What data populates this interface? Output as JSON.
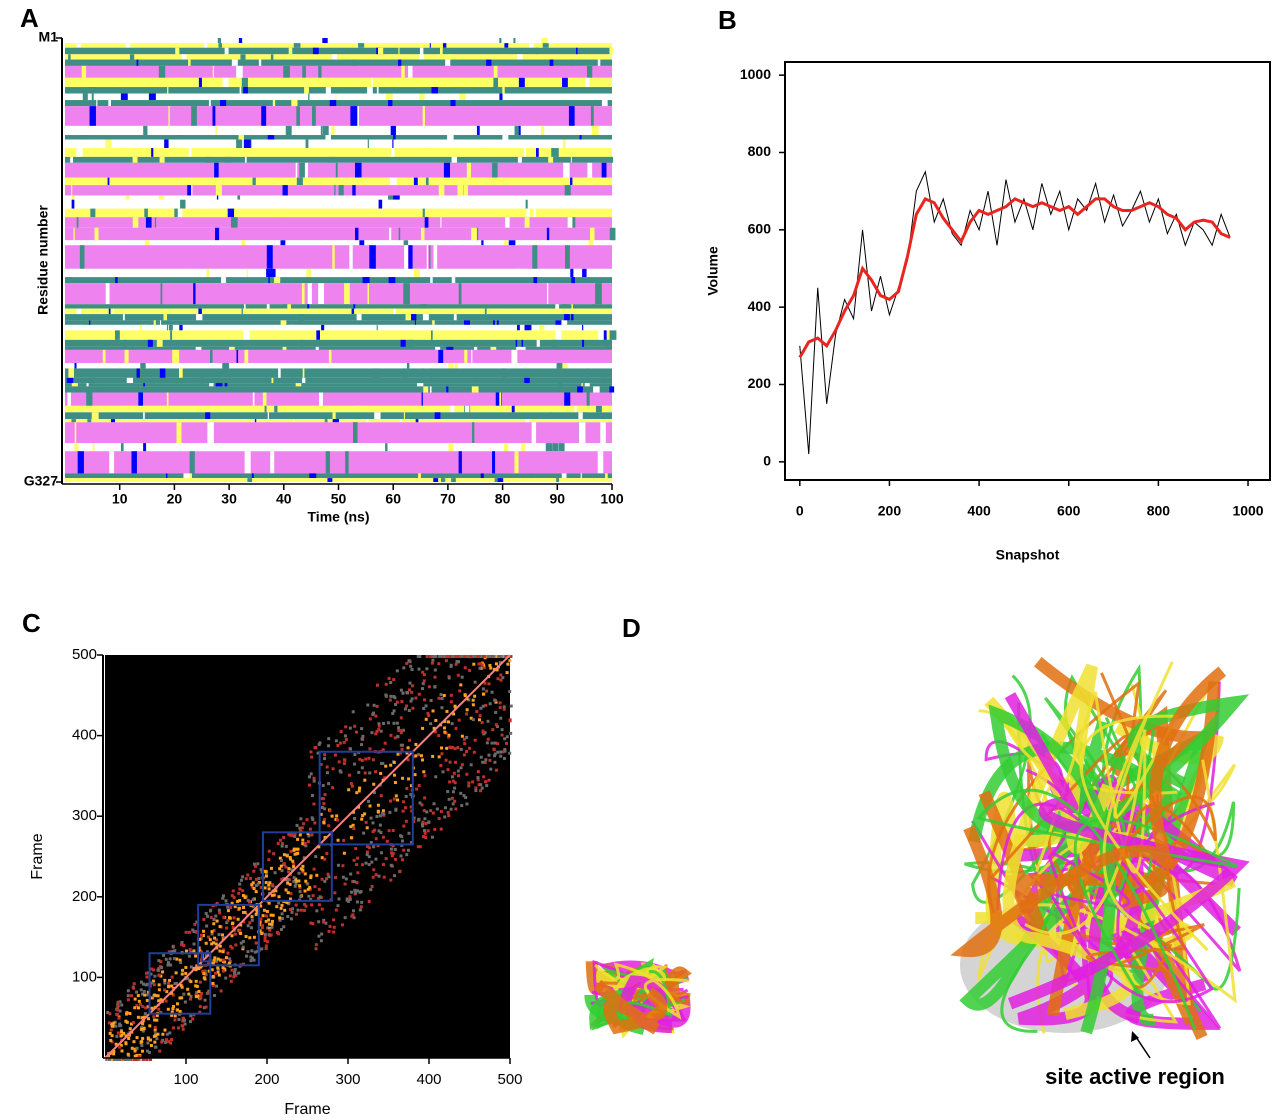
{
  "chart_data": [
    {
      "type": "heatmap",
      "label": "A",
      "xlabel": "Time (ns)",
      "ylabel": "Residue number",
      "xlim": [
        0,
        100
      ],
      "xticks": [
        10,
        20,
        30,
        40,
        50,
        60,
        70,
        80,
        90,
        100
      ],
      "ylim": [
        1,
        327
      ],
      "yticks": [
        {
          "value": 1,
          "label": "M1"
        },
        {
          "value": 327,
          "label": "G327"
        }
      ]
    },
    {
      "type": "line",
      "label": "B",
      "xlabel": "Snapshot",
      "ylabel": "Volume",
      "xlim": [
        -33,
        1049
      ],
      "xticks": [
        0,
        200,
        400,
        600,
        800,
        1000
      ],
      "ylim": [
        -47,
        1034
      ],
      "yticks": [
        0,
        200,
        400,
        600,
        800,
        1000
      ],
      "x": [
        0,
        20,
        40,
        60,
        80,
        100,
        120,
        140,
        160,
        180,
        200,
        220,
        240,
        260,
        280,
        300,
        320,
        340,
        360,
        380,
        400,
        420,
        440,
        460,
        480,
        500,
        520,
        540,
        560,
        580,
        600,
        620,
        640,
        660,
        680,
        700,
        720,
        740,
        760,
        780,
        800,
        820,
        840,
        860,
        880,
        900,
        920,
        940,
        960
      ],
      "series": [
        {
          "color": "#000000",
          "values": [
            300,
            20,
            450,
            150,
            330,
            420,
            370,
            600,
            390,
            480,
            380,
            450,
            520,
            700,
            750,
            620,
            680,
            590,
            560,
            650,
            600,
            700,
            560,
            730,
            620,
            680,
            600,
            720,
            640,
            700,
            600,
            680,
            650,
            720,
            620,
            690,
            610,
            650,
            700,
            620,
            680,
            590,
            640,
            560,
            620,
            600,
            560,
            640,
            580
          ]
        },
        {
          "color": "#e8251f",
          "values": [
            270,
            310,
            320,
            300,
            340,
            390,
            430,
            500,
            470,
            430,
            420,
            440,
            530,
            640,
            680,
            670,
            630,
            600,
            570,
            620,
            650,
            640,
            650,
            660,
            680,
            670,
            660,
            670,
            660,
            650,
            660,
            640,
            660,
            680,
            680,
            660,
            650,
            650,
            660,
            670,
            660,
            640,
            630,
            600,
            620,
            625,
            620,
            590,
            580
          ]
        }
      ]
    },
    {
      "type": "matrix",
      "label": "C",
      "xlabel": "Frame",
      "ylabel": "Frame",
      "xlim": [
        0,
        500
      ],
      "xticks": [
        100,
        200,
        300,
        400,
        500
      ],
      "ylim": [
        0,
        500
      ],
      "yticks": [
        100,
        200,
        300,
        400,
        500
      ],
      "clusters": [
        [
          55,
          130
        ],
        [
          115,
          190
        ],
        [
          195,
          280
        ],
        [
          265,
          380
        ],
        [
          120,
          130
        ],
        [
          265,
          280
        ]
      ],
      "cluster_color": "#1f3f9a"
    },
    {
      "type": "image",
      "label": "D",
      "annotation": "site active region"
    }
  ]
}
